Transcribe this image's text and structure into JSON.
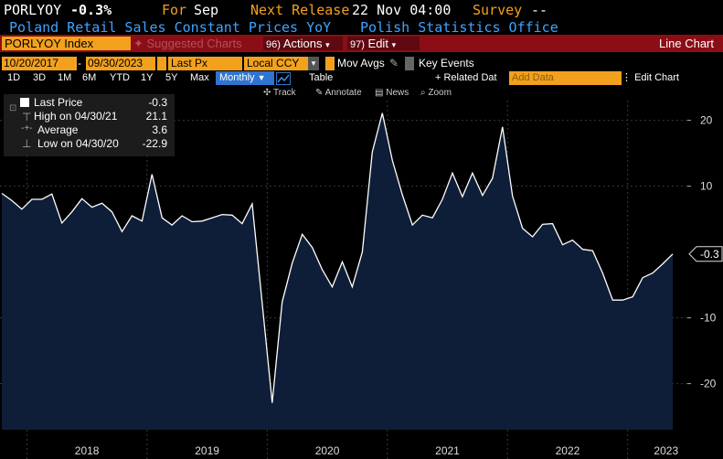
{
  "header": {
    "ticker": "PORLYOY",
    "last_value": "-0.3%",
    "for_label": "For",
    "for_period": "Sep",
    "next_release_label": "Next Release",
    "next_release_value": "22 Nov 04:00",
    "survey_label": "Survey",
    "survey_value": "--",
    "description": "Poland Retail Sales Constant Prices YoY",
    "source": "Polish Statistics Office"
  },
  "toolbar": {
    "security": "PORLYOY Index",
    "suggested_charts": "Suggested Charts",
    "actions_num": "96)",
    "actions": "Actions",
    "edit_num": "97)",
    "edit": "Edit",
    "chart_type": "Line Chart"
  },
  "controls": {
    "start_date": "10/20/2017",
    "end_date": "09/30/2023",
    "price_field": "Last Px",
    "currency": "Local CCY",
    "mov_avgs": "Mov Avgs",
    "key_events": "Key Events"
  },
  "ranges": {
    "buttons": [
      "1D",
      "3D",
      "1M",
      "6M",
      "YTD",
      "1Y",
      "5Y",
      "Max"
    ],
    "frequency": "Monthly",
    "table": "Table",
    "related_data": "+ Related Dat",
    "add_data_placeholder": "Add Data",
    "edit_chart": "Edit Chart"
  },
  "tools": {
    "track": "Track",
    "annotate": "Annotate",
    "news": "News",
    "zoom": "Zoom"
  },
  "legend": {
    "last_price_label": "Last Price",
    "last_price_value": "-0.3",
    "high_label": "High on 04/30/21",
    "high_value": "21.1",
    "average_label": "Average",
    "average_value": "3.6",
    "low_label": "Low on 04/30/20",
    "low_value": "-22.9"
  },
  "colors": {
    "accent": "#f3a11c",
    "toolbar_red": "#8b0e16",
    "description_blue": "#3ea4ff",
    "area_fill": "#0f1e38",
    "line": "#ffffff"
  },
  "chart_data": {
    "type": "area",
    "ylim": [
      -27,
      23
    ],
    "yticks": [
      20,
      10,
      -10,
      -20
    ],
    "x_labels": [
      "2018",
      "2019",
      "2020",
      "2021",
      "2022",
      "2023"
    ],
    "last_value_label": "-0.3",
    "start": "2017-10",
    "values": [
      8.9,
      7.8,
      6.5,
      8.0,
      8.0,
      8.8,
      4.4,
      6.1,
      8.1,
      6.8,
      7.4,
      6.1,
      3.1,
      5.5,
      4.7,
      11.8,
      5.2,
      4.1,
      5.5,
      4.6,
      4.7,
      5.2,
      5.7,
      5.6,
      4.3,
      7.3,
      -7.7,
      -22.9,
      -7.6,
      -1.7,
      2.7,
      0.7,
      -2.7,
      -5.3,
      -1.5,
      -5.3,
      0.0,
      15.2,
      21.1,
      13.9,
      8.7,
      4.1,
      5.6,
      5.2,
      8.0,
      12.0,
      8.4,
      12.0,
      8.6,
      11.2,
      19.0,
      8.5,
      3.6,
      2.3,
      4.2,
      4.3,
      1.1,
      1.8,
      0.4,
      0.2,
      -3.2,
      -7.3,
      -7.3,
      -6.8,
      -3.9,
      -3.2,
      -1.8,
      -0.3
    ]
  }
}
